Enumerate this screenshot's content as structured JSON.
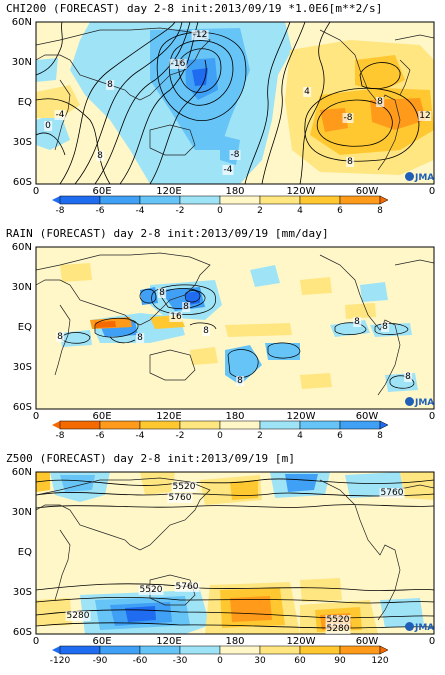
{
  "panels": [
    {
      "title": "CHI200 (FORECAST) day 2-8 init:2013/09/19  *1.0E6[m**2/s]",
      "lat_labels": [
        "60N",
        "30N",
        "EQ",
        "30S",
        "60S"
      ],
      "lon_labels": [
        "0",
        "60E",
        "120E",
        "180",
        "120W",
        "60W",
        "0"
      ],
      "colorbar_labels": [
        "-8",
        "-6",
        "-4",
        "-2",
        "0",
        "2",
        "4",
        "6",
        "8"
      ],
      "colorbar_colors": [
        "#1f6cf0",
        "#3fa0f5",
        "#66c4f7",
        "#9fe3f7",
        "#fff7c8",
        "#ffe680",
        "#ffc830",
        "#ff9a1a",
        "#f56a00"
      ],
      "contour_labels": [
        "-12",
        "-16",
        "0",
        "-4",
        "8",
        "-8",
        "-4",
        "8",
        "4",
        "-8",
        "12",
        "8",
        "8"
      ],
      "badge": "JMA"
    },
    {
      "title": "RAIN (FORECAST) day 2-8 init:2013/09/19  [mm/day]",
      "lat_labels": [
        "60N",
        "30N",
        "EQ",
        "30S",
        "60S"
      ],
      "lon_labels": [
        "0",
        "60E",
        "120E",
        "180",
        "120W",
        "60W",
        "0"
      ],
      "colorbar_labels": [
        "-8",
        "-6",
        "-4",
        "-2",
        "0",
        "2",
        "4",
        "6",
        "8"
      ],
      "colorbar_colors": [
        "#f56a00",
        "#ff9a1a",
        "#ffc830",
        "#ffe680",
        "#fff7c8",
        "#9fe3f7",
        "#66c4f7",
        "#3fa0f5",
        "#1f6cf0"
      ],
      "contour_labels": [
        "8",
        "8",
        "8",
        "16",
        "8",
        "8",
        "8",
        "8",
        "8",
        "8"
      ],
      "badge": "JMA"
    },
    {
      "title": "Z500 (FORECAST) day 2-8 init:2013/09/19  [m]",
      "lat_labels": [
        "60N",
        "30N",
        "EQ",
        "30S",
        "60S"
      ],
      "lon_labels": [
        "0",
        "60E",
        "120E",
        "180",
        "120W",
        "60W",
        "0"
      ],
      "colorbar_labels": [
        "-120",
        "-90",
        "-60",
        "-30",
        "0",
        "30",
        "60",
        "90",
        "120"
      ],
      "colorbar_colors": [
        "#1f6cf0",
        "#3fa0f5",
        "#66c4f7",
        "#9fe3f7",
        "#fff7c8",
        "#ffe680",
        "#ffc830",
        "#ff9a1a",
        "#f56a00"
      ],
      "contour_labels": [
        "5520",
        "5760",
        "5760",
        "5520",
        "5760",
        "5280",
        "5520",
        "5280"
      ],
      "badge": "JMA"
    }
  ]
}
